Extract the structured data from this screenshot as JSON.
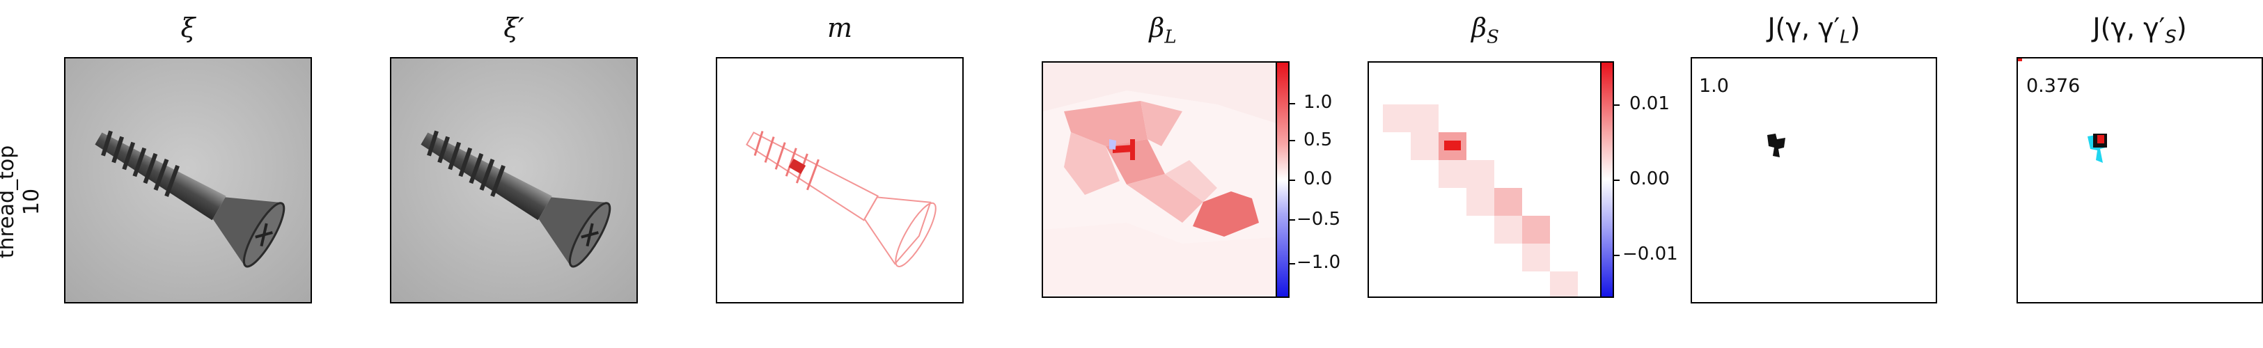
{
  "row": {
    "label_line1": "thread_top",
    "label_line2": "10"
  },
  "panels": {
    "xi": {
      "title": "ξ"
    },
    "xi_prime": {
      "title": "ξ′"
    },
    "m": {
      "title": "m"
    },
    "beta_l": {
      "title": "β",
      "title_sub": "L",
      "colorbar_ticks": [
        "1.0",
        "0.5",
        "0.0",
        "−0.5",
        "−1.0"
      ]
    },
    "beta_s": {
      "title": "β",
      "title_sub": "S",
      "colorbar_ticks": [
        "0.01",
        "0.00",
        "−0.01"
      ]
    },
    "j_l": {
      "title": "J(γ, γ′",
      "title_sub": "L",
      "title_end": ")",
      "score": "1.0"
    },
    "j_s": {
      "title": "J(γ, γ′",
      "title_sub": "S",
      "title_end": ")",
      "score": "0.376"
    }
  },
  "colors": {
    "heat_pos": "#e8121c",
    "heat_neg": "#1414e6",
    "overlay_cyan": "#1fd6f0",
    "mask_black": "#111111"
  }
}
